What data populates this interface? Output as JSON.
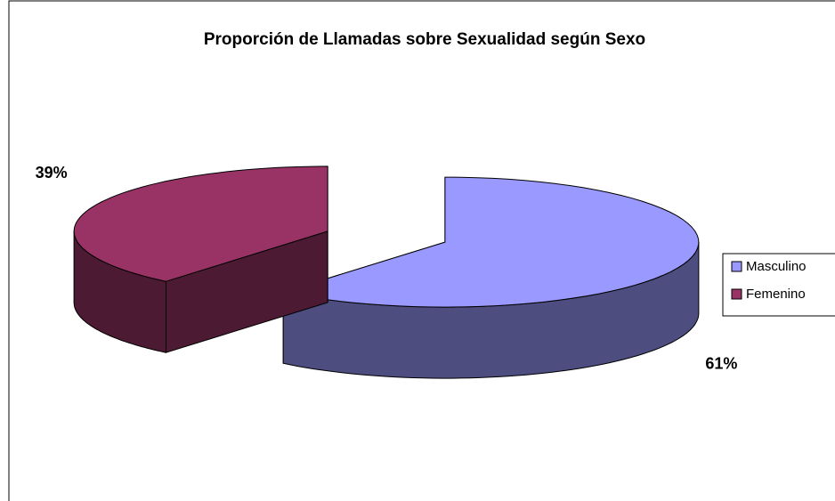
{
  "chart_data": {
    "type": "pie3d",
    "title": "Proporción de Llamadas sobre Sexualidad según Sexo",
    "categories": [
      "Masculino",
      "Femenino"
    ],
    "values": [
      61,
      39
    ],
    "value_labels": [
      "61%",
      "39%"
    ],
    "colors": [
      "#9999ff",
      "#993366"
    ],
    "legend": "right",
    "exploded": true
  }
}
